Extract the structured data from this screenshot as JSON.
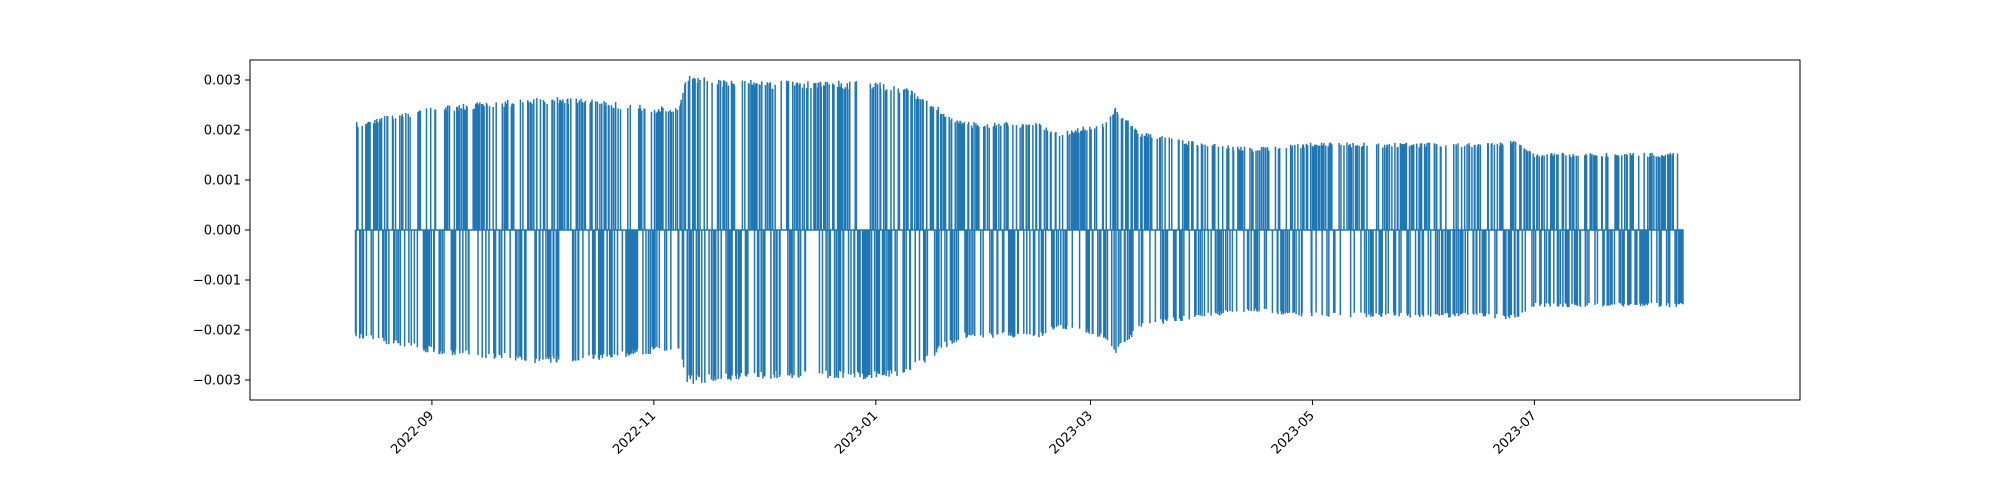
{
  "chart_data": {
    "type": "line",
    "title": "",
    "xlabel": "",
    "ylabel": "",
    "x_tick_labels": [
      "2022-09",
      "2022-11",
      "2023-01",
      "2023-03",
      "2023-05",
      "2023-07"
    ],
    "x_tick_dates": [
      "2022-09-01",
      "2022-11-01",
      "2023-01-01",
      "2023-03-01",
      "2023-05-01",
      "2023-07-01"
    ],
    "y_tick_labels": [
      "0.003",
      "0.002",
      "0.001",
      "0.000",
      "−0.001",
      "−0.002",
      "−0.003"
    ],
    "y_tick_values": [
      0.003,
      0.002,
      0.001,
      0.0,
      -0.001,
      -0.002,
      -0.003
    ],
    "xlim": [
      "2022-07-13",
      "2023-09-12"
    ],
    "ylim": [
      -0.0034,
      0.0034
    ],
    "grid": false,
    "legend": "none",
    "series": [
      {
        "color": "#1f77b4",
        "style": "spikes",
        "envelope": {
          "dates": [
            "2022-08-11",
            "2022-09-01",
            "2022-10-01",
            "2022-10-15",
            "2022-11-01",
            "2022-11-08",
            "2022-11-10",
            "2022-12-01",
            "2022-12-15",
            "2023-01-01",
            "2023-01-10",
            "2023-01-20",
            "2023-01-25",
            "2023-02-15",
            "2023-02-20",
            "2023-03-01",
            "2023-03-05",
            "2023-03-08",
            "2023-03-15",
            "2023-04-01",
            "2023-04-15",
            "2023-05-01",
            "2023-06-01",
            "2023-06-15",
            "2023-06-25",
            "2023-07-01",
            "2023-08-11"
          ],
          "amplitude": [
            0.0021,
            0.0024,
            0.0026,
            0.00255,
            0.0024,
            0.0024,
            0.003,
            0.0029,
            0.0029,
            0.0029,
            0.0028,
            0.0023,
            0.0021,
            0.0021,
            0.0019,
            0.00205,
            0.0021,
            0.0024,
            0.0019,
            0.0017,
            0.0016,
            0.0017,
            0.0017,
            0.0017,
            0.00175,
            0.0015,
            0.0015
          ]
        }
      }
    ]
  }
}
